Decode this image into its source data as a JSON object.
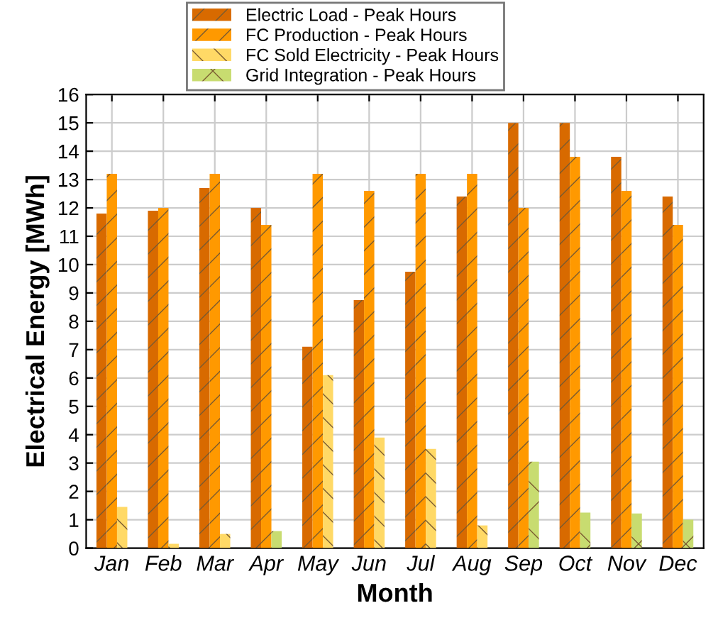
{
  "chart_data": {
    "type": "bar",
    "xlabel": "Month",
    "ylabel": "Electrical Energy [MWh]",
    "categories": [
      "Jan",
      "Feb",
      "Mar",
      "Apr",
      "May",
      "Jun",
      "Jul",
      "Aug",
      "Sep",
      "Oct",
      "Nov",
      "Dec"
    ],
    "series": [
      {
        "name": "Electric Load - Peak Hours",
        "color": "#d86a00",
        "values": [
          11.8,
          11.9,
          12.7,
          12.0,
          7.1,
          8.75,
          9.75,
          12.4,
          15.0,
          15.0,
          13.8,
          12.4
        ]
      },
      {
        "name": "FC Production - Peak Hours",
        "color": "#ff9900",
        "values": [
          13.2,
          12.0,
          13.2,
          11.4,
          13.2,
          12.6,
          13.2,
          13.2,
          12.0,
          13.8,
          12.6,
          11.4
        ]
      },
      {
        "name": "FC Sold Electricity - Peak Hours",
        "color": "#ffd966",
        "values": [
          1.45,
          0.15,
          0.5,
          null,
          6.1,
          3.9,
          3.5,
          0.8,
          null,
          null,
          null,
          null
        ]
      },
      {
        "name": "Grid Integration - Peak Hours",
        "color": "#c8dc70",
        "values": [
          null,
          null,
          null,
          0.6,
          null,
          null,
          null,
          null,
          3.05,
          1.25,
          1.22,
          1.0
        ]
      }
    ],
    "ylim": [
      0,
      16
    ],
    "yticks": [
      0,
      1,
      2,
      3,
      4,
      5,
      6,
      7,
      8,
      9,
      10,
      11,
      12,
      13,
      14,
      15,
      16
    ],
    "grid": true,
    "legend": "top"
  }
}
